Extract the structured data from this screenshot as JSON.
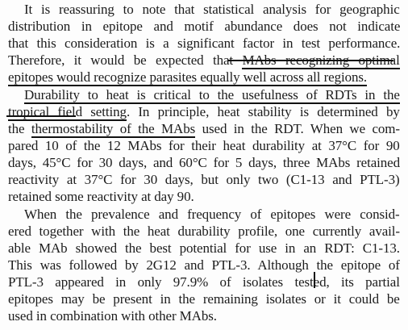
{
  "document": {
    "paragraphs": [
      {
        "lines": [
          [
            {
              "t": "It is reassuring to note that statistical analysis for geographic"
            }
          ],
          [
            {
              "t": "distribution in epitope and motif abundance does not indicate"
            }
          ],
          [
            {
              "t": "that this consideration is a significant factor in test performance."
            }
          ],
          [
            {
              "t": "Therefore, it would be expected that "
            },
            {
              "t": "MAbs recognizing optimal",
              "u": true
            }
          ],
          [
            {
              "t": "epitopes would recognize parasites equally well across all regions.",
              "u": true
            }
          ]
        ]
      },
      {
        "lines": [
          [
            {
              "t": "Durability to heat is critical to the usefulness of RDTs in the",
              "u": true
            }
          ],
          [
            {
              "t": "tropical field setting",
              "u": true
            },
            {
              "t": ". In principle, heat stability is determined by"
            }
          ],
          [
            {
              "t": "the "
            },
            {
              "t": "thermostability of the MAbs",
              "u": true
            },
            {
              "t": " used in the RDT. When we com-"
            }
          ],
          [
            {
              "t": "pared 10 of the 12 MAbs for their heat durability at 37°C for 90"
            }
          ],
          [
            {
              "t": "days, 45°C for 30 days, and 60°C for 5 days, three MAbs retained"
            }
          ],
          [
            {
              "t": "reactivity at 37°C for 30 days, but only two (C1-13 and PTL-3)"
            }
          ],
          [
            {
              "t": "retained some reactivity at day 90."
            }
          ]
        ]
      },
      {
        "lines": [
          [
            {
              "t": "When the prevalence and frequency of epitopes were consid-"
            }
          ],
          [
            {
              "t": "ered together with the heat durability profile, one currently avail-"
            }
          ],
          [
            {
              "t": "able MAb showed the best potential for use in an RDT: C1-13."
            }
          ],
          [
            {
              "t": "This was followed by 2G12 and PTL-3. Although the epitope of"
            }
          ],
          [
            {
              "t": "PTL-3 appeared in only 97.9% of isolates tested, its partial"
            }
          ],
          [
            {
              "t": "epitopes may be present in the remaining isolates or it could be"
            }
          ],
          [
            {
              "t": "used in combination with other MAbs."
            }
          ]
        ]
      }
    ]
  }
}
